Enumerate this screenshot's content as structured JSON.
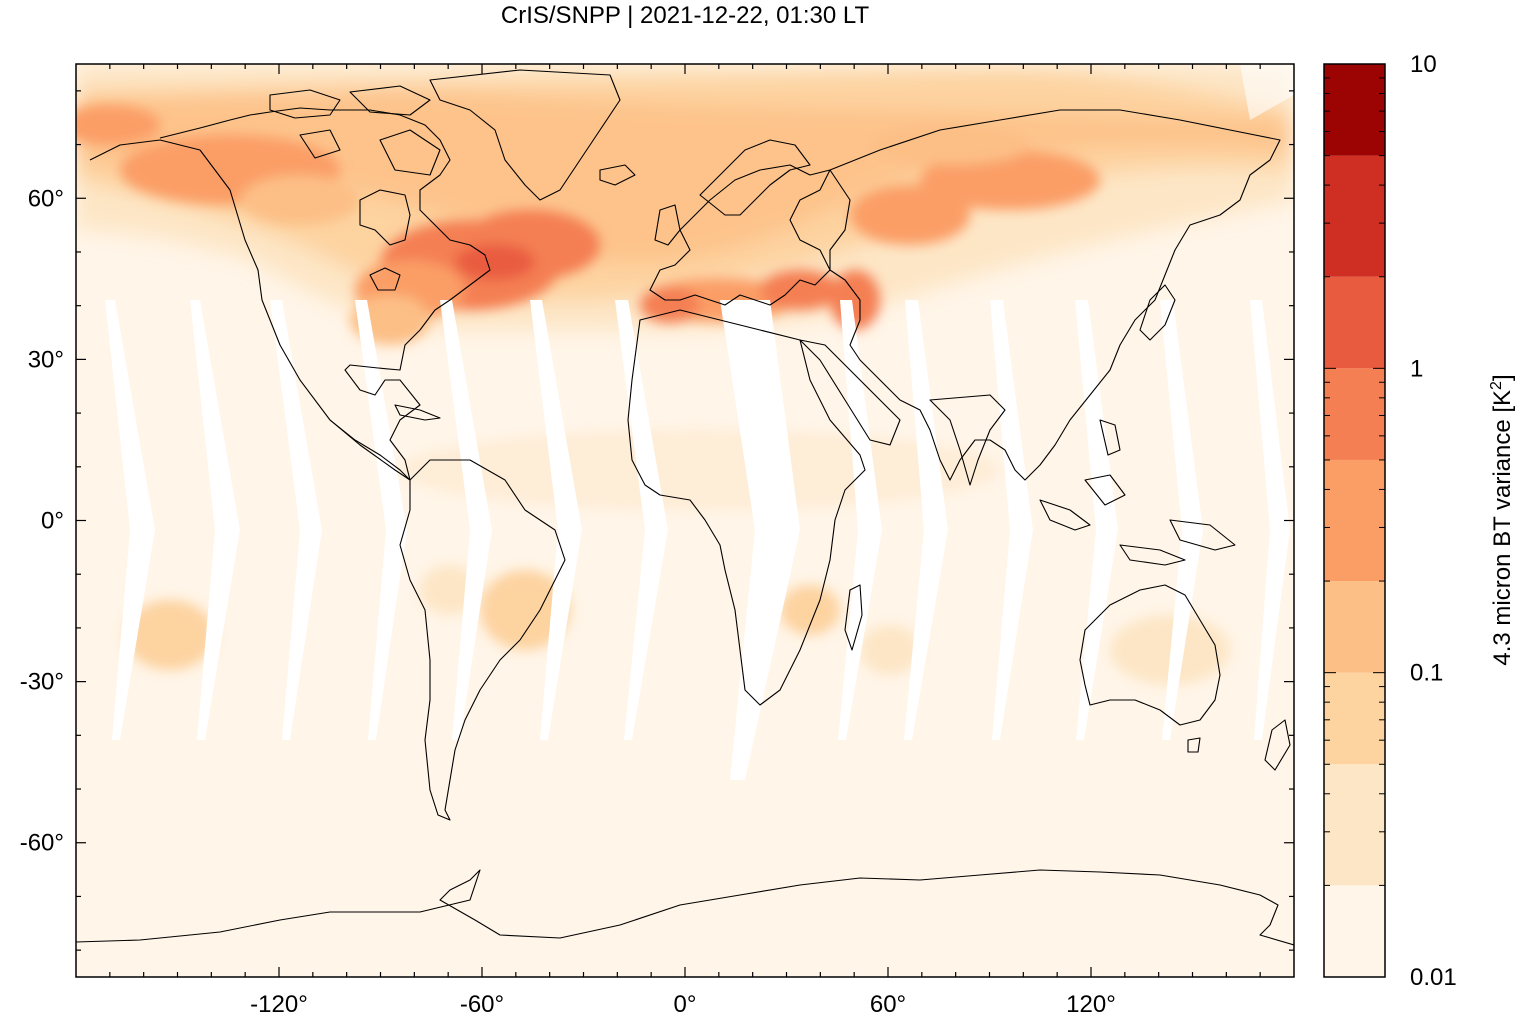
{
  "title": "CrIS/SNPP | 2021-12-22, 01:30 LT",
  "x_ticks": [
    {
      "value": -120,
      "label": "-120°"
    },
    {
      "value": -60,
      "label": "-60°"
    },
    {
      "value": 0,
      "label": "0°"
    },
    {
      "value": 60,
      "label": "60°"
    },
    {
      "value": 120,
      "label": "120°"
    }
  ],
  "y_ticks": [
    {
      "value": 60,
      "label": "60°"
    },
    {
      "value": 30,
      "label": "30°"
    },
    {
      "value": 0,
      "label": "0°"
    },
    {
      "value": -30,
      "label": "-30°"
    },
    {
      "value": -60,
      "label": "-60°"
    }
  ],
  "map": {
    "lon_range": [
      -180,
      180
    ],
    "lat_range": [
      -85,
      85
    ],
    "projection": "equirectangular"
  },
  "colorbar": {
    "scale": "log",
    "range": [
      0.01,
      10
    ],
    "label_text": "4.3 micron BT variance [K",
    "label_superscript": "2",
    "label_close": "]",
    "tick_labels": [
      {
        "value": 10,
        "label": "10"
      },
      {
        "value": 1,
        "label": "1"
      },
      {
        "value": 0.1,
        "label": "0.1"
      },
      {
        "value": 0.01,
        "label": "0.01"
      }
    ],
    "levels": [
      {
        "from": 0.01,
        "to": 0.02,
        "color": "#fff5e8"
      },
      {
        "from": 0.02,
        "to": 0.05,
        "color": "#fde6c6"
      },
      {
        "from": 0.05,
        "to": 0.1,
        "color": "#fdd3a0"
      },
      {
        "from": 0.1,
        "to": 0.2,
        "color": "#fcbf86"
      },
      {
        "from": 0.2,
        "to": 0.5,
        "color": "#fb9e66"
      },
      {
        "from": 0.5,
        "to": 1,
        "color": "#f47f52"
      },
      {
        "from": 1,
        "to": 2,
        "color": "#e95b3f"
      },
      {
        "from": 2,
        "to": 5,
        "color": "#cf2e22"
      },
      {
        "from": 5,
        "to": 10,
        "color": "#9c0404"
      }
    ]
  },
  "colors": {
    "background_field": "#fff5e8",
    "coastline": "#000000",
    "swath_gap": "#ffffff"
  }
}
